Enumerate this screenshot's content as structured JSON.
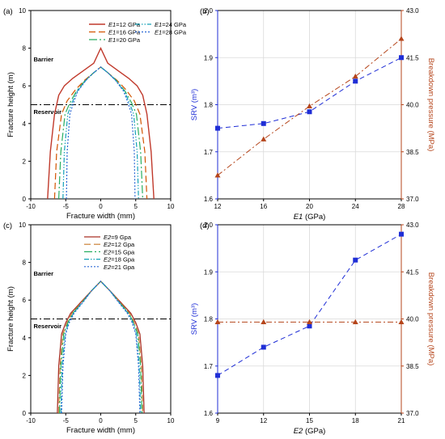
{
  "chart_data": [
    {
      "id": "a",
      "type": "line",
      "panel_label": "(a)",
      "xlabel": "Fracture width (mm)",
      "ylabel": "Fracture height (m)",
      "xlim": [
        -10,
        10
      ],
      "ylim": [
        0,
        10
      ],
      "xticks": [
        -10,
        -5,
        0,
        5,
        10
      ],
      "yticks": [
        0,
        2,
        4,
        6,
        8,
        10
      ],
      "grid": false,
      "legend_position": "top-right",
      "legend_cols": 2,
      "annotations": [
        {
          "text": "Barrier",
          "x": -9.6,
          "y": 7.3
        },
        {
          "text": "Reservoir",
          "x": -9.6,
          "y": 4.5
        }
      ],
      "hline": {
        "y": 5.0,
        "style": "dash-dot",
        "color": "#000000"
      },
      "series": [
        {
          "name_prefix": "E1",
          "name_suffix": "=12 GPa",
          "color": "#c0392b",
          "dash": "solid",
          "width": 1.4,
          "x": [
            -7.6,
            -7.2,
            -6.6,
            -6.0,
            -5.2,
            -4.0,
            -2.5,
            -1.0,
            0.0,
            1.0,
            2.5,
            4.0,
            5.2,
            6.0,
            6.6,
            7.2,
            7.6
          ],
          "y": [
            0,
            2.5,
            4.5,
            5.5,
            6.0,
            6.4,
            6.8,
            7.2,
            8.0,
            7.2,
            6.8,
            6.4,
            6.0,
            5.5,
            4.5,
            2.5,
            0
          ]
        },
        {
          "name_prefix": "E1",
          "name_suffix": "=16 GPa",
          "color": "#d35400",
          "dash": "8,4",
          "width": 1.2,
          "x": [
            -6.6,
            -6.3,
            -5.6,
            -4.8,
            -3.6,
            -2.3,
            -1.0,
            0.0,
            1.0,
            2.3,
            3.6,
            4.8,
            5.6,
            6.3,
            6.6
          ],
          "y": [
            0,
            2.5,
            4.5,
            5.2,
            5.8,
            6.3,
            6.7,
            7.0,
            6.7,
            6.3,
            5.8,
            5.2,
            4.5,
            2.5,
            0
          ]
        },
        {
          "name_prefix": "E1",
          "name_suffix": "=20 GPa",
          "color": "#27ae60",
          "dash": "10,3,2,3",
          "width": 1.2,
          "x": [
            -6.0,
            -5.7,
            -5.1,
            -4.4,
            -3.5,
            -2.2,
            -1.0,
            0.0,
            1.0,
            2.2,
            3.5,
            4.4,
            5.1,
            5.7,
            6.0
          ],
          "y": [
            0,
            2.5,
            4.5,
            5.1,
            5.7,
            6.3,
            6.7,
            7.0,
            6.7,
            6.3,
            5.7,
            5.1,
            4.5,
            2.5,
            0
          ]
        },
        {
          "name_prefix": "E1",
          "name_suffix": "=24 GPa",
          "color": "#17a2b8",
          "dash": "6,2,1.5,2,1.5,2",
          "width": 1.2,
          "x": [
            -5.4,
            -5.2,
            -4.7,
            -4.1,
            -3.4,
            -2.1,
            -1.0,
            0.0,
            1.0,
            2.1,
            3.4,
            4.1,
            4.7,
            5.2,
            5.4
          ],
          "y": [
            0,
            2.5,
            4.5,
            5.1,
            5.7,
            6.3,
            6.7,
            7.0,
            6.7,
            6.3,
            5.7,
            5.1,
            4.5,
            2.5,
            0
          ]
        },
        {
          "name_prefix": "E1",
          "name_suffix": "=28 GPa",
          "color": "#2d6ad6",
          "dash": "2,2",
          "width": 1.2,
          "x": [
            -4.9,
            -4.8,
            -4.4,
            -3.9,
            -3.3,
            -2.1,
            -1.0,
            0.0,
            1.0,
            2.1,
            3.3,
            3.9,
            4.4,
            4.8,
            4.9
          ],
          "y": [
            0,
            2.5,
            4.5,
            5.1,
            5.7,
            6.3,
            6.7,
            7.0,
            6.7,
            6.3,
            5.7,
            5.1,
            4.5,
            2.5,
            0
          ]
        }
      ]
    },
    {
      "id": "b",
      "type": "line",
      "panel_label": "(b)",
      "xlabel_prefix": "E1",
      "xlabel_suffix": " (GPa)",
      "ylabel": "SRV (m³)",
      "y2label": "Breakdown pressure (MPa)",
      "x": [
        12,
        16,
        20,
        24,
        28
      ],
      "xticks": [
        12,
        16,
        20,
        24,
        28
      ],
      "xlim": [
        12,
        28
      ],
      "ylim": [
        1.6,
        2.0
      ],
      "yticks": [
        "1.6",
        "1.7",
        "1.8",
        "1.9",
        "2.0"
      ],
      "y2lim": [
        37.0,
        43.0
      ],
      "y2ticks": [
        "37.0",
        "38.5",
        "40.0",
        "41.5",
        "43.0"
      ],
      "grid": true,
      "series": [
        {
          "axis": "left",
          "color": "#1f2ed6",
          "marker": "square",
          "dash": "6,4",
          "values": [
            1.75,
            1.76,
            1.785,
            1.85,
            1.9
          ]
        },
        {
          "axis": "right",
          "color": "#b5451b",
          "marker": "triangle",
          "dash": "7,3,2,3",
          "values": [
            37.75,
            38.9,
            39.95,
            40.9,
            42.1
          ]
        }
      ]
    },
    {
      "id": "c",
      "type": "line",
      "panel_label": "(c)",
      "xlabel": "Fracture width (mm)",
      "ylabel": "Fracture height (m)",
      "xlim": [
        -10,
        10
      ],
      "ylim": [
        0,
        10
      ],
      "xticks": [
        -10,
        -5,
        0,
        5,
        10
      ],
      "yticks": [
        0,
        2,
        4,
        6,
        8,
        10
      ],
      "grid": false,
      "legend_position": "top-right",
      "legend_cols": 1,
      "annotations": [
        {
          "text": "Barrier",
          "x": -9.6,
          "y": 7.3
        },
        {
          "text": "Reservoir",
          "x": -9.6,
          "y": 4.5
        }
      ],
      "hline": {
        "y": 5.0,
        "style": "dash-dot",
        "color": "#000000"
      },
      "series": [
        {
          "name_prefix": "E2",
          "name_suffix": "=9 Gpa",
          "color": "#a93226",
          "dash": "solid",
          "width": 1.3,
          "x": [
            -6.2,
            -6.0,
            -5.6,
            -5.0,
            -4.3,
            -2.8,
            -1.3,
            0.0,
            1.3,
            2.8,
            4.3,
            5.0,
            5.6,
            6.0,
            6.2
          ],
          "y": [
            0,
            2.5,
            4.2,
            4.8,
            5.3,
            5.9,
            6.5,
            7.0,
            6.5,
            5.9,
            5.3,
            4.8,
            4.2,
            2.5,
            0
          ]
        },
        {
          "name_prefix": "E2",
          "name_suffix": "=12 Gpa",
          "color": "#c97a2a",
          "dash": "8,4",
          "width": 1.2,
          "x": [
            -6.0,
            -5.8,
            -5.4,
            -4.8,
            -4.1,
            -2.7,
            -1.3,
            0.0,
            1.3,
            2.7,
            4.1,
            4.8,
            5.4,
            5.8,
            6.0
          ],
          "y": [
            0,
            2.5,
            4.2,
            4.8,
            5.3,
            5.9,
            6.5,
            7.0,
            6.5,
            5.9,
            5.3,
            4.8,
            4.2,
            2.5,
            0
          ]
        },
        {
          "name_prefix": "E2",
          "name_suffix": "=15 Gpa",
          "color": "#27ae60",
          "dash": "10,3,2,3",
          "width": 1.2,
          "x": [
            -5.9,
            -5.7,
            -5.3,
            -4.7,
            -4.0,
            -2.6,
            -1.3,
            0.0,
            1.3,
            2.6,
            4.0,
            4.7,
            5.3,
            5.7,
            5.9
          ],
          "y": [
            0,
            2.5,
            4.2,
            4.8,
            5.3,
            5.9,
            6.5,
            7.0,
            6.5,
            5.9,
            5.3,
            4.8,
            4.2,
            2.5,
            0
          ]
        },
        {
          "name_prefix": "E2",
          "name_suffix": "=18 Gpa",
          "color": "#17a2b8",
          "dash": "6,2,1.5,2,1.5,2",
          "width": 1.2,
          "x": [
            -5.7,
            -5.5,
            -5.1,
            -4.6,
            -3.9,
            -2.6,
            -1.3,
            0.0,
            1.3,
            2.6,
            3.9,
            4.6,
            5.1,
            5.5,
            5.7
          ],
          "y": [
            0,
            2.5,
            4.2,
            4.8,
            5.3,
            5.9,
            6.5,
            7.0,
            6.5,
            5.9,
            5.3,
            4.8,
            4.2,
            2.5,
            0
          ]
        },
        {
          "name_prefix": "E2",
          "name_suffix": "=21 Gpa",
          "color": "#2d6ad6",
          "dash": "2,2",
          "width": 1.2,
          "x": [
            -5.6,
            -5.4,
            -5.0,
            -4.5,
            -3.8,
            -2.5,
            -1.3,
            0.0,
            1.3,
            2.5,
            3.8,
            4.5,
            5.0,
            5.4,
            5.6
          ],
          "y": [
            0,
            2.5,
            4.2,
            4.8,
            5.3,
            5.9,
            6.5,
            7.0,
            6.5,
            5.9,
            5.3,
            4.8,
            4.2,
            2.5,
            0
          ]
        }
      ]
    },
    {
      "id": "d",
      "type": "line",
      "panel_label": "(d)",
      "xlabel_prefix": "E2",
      "xlabel_suffix": " (GPa)",
      "ylabel": "SRV (m³)",
      "y2label": "Breakdown pressure (MPa)",
      "x": [
        9,
        12,
        15,
        18,
        21
      ],
      "xticks": [
        9,
        12,
        15,
        18,
        21
      ],
      "xlim": [
        9,
        21
      ],
      "ylim": [
        1.6,
        2.0
      ],
      "yticks": [
        "1.6",
        "1.7",
        "1.8",
        "1.9",
        "2.0"
      ],
      "y2lim": [
        37.0,
        43.0
      ],
      "y2ticks": [
        "37.0",
        "38.5",
        "40.0",
        "41.5",
        "43.0"
      ],
      "grid": true,
      "series": [
        {
          "axis": "left",
          "color": "#1f2ed6",
          "marker": "square",
          "dash": "6,4",
          "values": [
            1.68,
            1.74,
            1.785,
            1.925,
            1.98
          ]
        },
        {
          "axis": "right",
          "color": "#b5451b",
          "marker": "triangle",
          "dash": "7,3,2,3",
          "values": [
            39.9,
            39.9,
            39.9,
            39.9,
            39.9
          ]
        }
      ]
    }
  ]
}
